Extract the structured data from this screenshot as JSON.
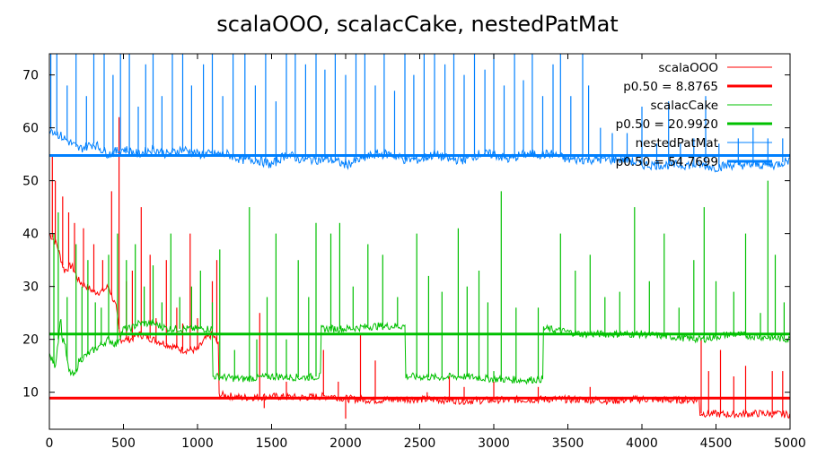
{
  "chart_data": {
    "type": "line",
    "title": "scalaOOO, scalacCake, nestedPatMat",
    "xlabel": "",
    "ylabel": "",
    "xlim": [
      0,
      5000
    ],
    "ylim": [
      3,
      74
    ],
    "xticks": [
      0,
      500,
      1000,
      1500,
      2000,
      2500,
      3000,
      3500,
      4000,
      4500,
      5000
    ],
    "yticks": [
      10,
      20,
      30,
      40,
      50,
      60,
      70
    ],
    "grid": false,
    "legend_position": "top-right",
    "series": [
      {
        "name": "scalaOOO",
        "color": "#ff0000",
        "median_label": "p0.50 = 8.8765",
        "median": 8.8765,
        "points": [
          [
            0,
            40
          ],
          [
            50,
            38
          ],
          [
            100,
            33
          ],
          [
            150,
            34
          ],
          [
            200,
            31
          ],
          [
            250,
            30
          ],
          [
            300,
            29
          ],
          [
            350,
            29
          ],
          [
            400,
            30
          ],
          [
            450,
            26
          ],
          [
            480,
            20
          ],
          [
            550,
            20
          ],
          [
            600,
            21
          ],
          [
            700,
            20
          ],
          [
            800,
            19
          ],
          [
            900,
            18
          ],
          [
            1000,
            18
          ],
          [
            1050,
            20
          ],
          [
            1100,
            21
          ],
          [
            1140,
            19
          ],
          [
            1160,
            9.5
          ],
          [
            1300,
            9
          ],
          [
            1500,
            9.2
          ],
          [
            1700,
            9
          ],
          [
            1900,
            9.3
          ],
          [
            2000,
            8.8
          ],
          [
            2200,
            8.5
          ],
          [
            2400,
            8.7
          ],
          [
            2600,
            8.6
          ],
          [
            2800,
            8.4
          ],
          [
            3000,
            8.5
          ],
          [
            3200,
            8.6
          ],
          [
            3400,
            8.7
          ],
          [
            3600,
            8.6
          ],
          [
            3800,
            8.4
          ],
          [
            4000,
            8.7
          ],
          [
            4200,
            8.5
          ],
          [
            4390,
            8.6
          ],
          [
            4400,
            6
          ],
          [
            4600,
            5.8
          ],
          [
            4800,
            6
          ],
          [
            5000,
            5.8
          ]
        ],
        "spikes": [
          [
            20,
            55
          ],
          [
            40,
            50
          ],
          [
            90,
            47
          ],
          [
            130,
            44
          ],
          [
            170,
            42
          ],
          [
            230,
            41
          ],
          [
            300,
            38
          ],
          [
            360,
            35
          ],
          [
            420,
            48
          ],
          [
            470,
            62
          ],
          [
            520,
            31
          ],
          [
            560,
            33
          ],
          [
            620,
            45
          ],
          [
            680,
            36
          ],
          [
            720,
            24
          ],
          [
            790,
            35
          ],
          [
            860,
            26
          ],
          [
            900,
            23
          ],
          [
            950,
            40
          ],
          [
            1000,
            24
          ],
          [
            1100,
            31
          ],
          [
            1130,
            35
          ],
          [
            1420,
            25
          ],
          [
            1450,
            7
          ],
          [
            1600,
            12
          ],
          [
            1850,
            18
          ],
          [
            1950,
            12
          ],
          [
            2000,
            5
          ],
          [
            2100,
            21
          ],
          [
            2200,
            16
          ],
          [
            2550,
            10
          ],
          [
            2700,
            13
          ],
          [
            2800,
            11
          ],
          [
            3000,
            12
          ],
          [
            3300,
            11
          ],
          [
            3650,
            11
          ],
          [
            4400,
            20
          ],
          [
            4450,
            14
          ],
          [
            4530,
            18
          ],
          [
            4620,
            13
          ],
          [
            4700,
            15
          ],
          [
            4880,
            14
          ],
          [
            4950,
            14
          ]
        ]
      },
      {
        "name": "scalacCake",
        "color": "#00c000",
        "median_label": "p0.50 = 20.9920",
        "median": 20.992,
        "points": [
          [
            0,
            17
          ],
          [
            40,
            15
          ],
          [
            80,
            25
          ],
          [
            100,
            20
          ],
          [
            130,
            14
          ],
          [
            170,
            13
          ],
          [
            200,
            16
          ],
          [
            250,
            17
          ],
          [
            300,
            18
          ],
          [
            350,
            19
          ],
          [
            400,
            20
          ],
          [
            450,
            19
          ],
          [
            500,
            22
          ],
          [
            550,
            22
          ],
          [
            600,
            23
          ],
          [
            700,
            23
          ],
          [
            800,
            22
          ],
          [
            900,
            22
          ],
          [
            1000,
            22
          ],
          [
            1050,
            22
          ],
          [
            1100,
            22
          ],
          [
            1120,
            13
          ],
          [
            1300,
            12.5
          ],
          [
            1500,
            13
          ],
          [
            1700,
            12.8
          ],
          [
            1830,
            13
          ],
          [
            1850,
            22
          ],
          [
            2000,
            22
          ],
          [
            2200,
            22.5
          ],
          [
            2400,
            22.5
          ],
          [
            2410,
            13
          ],
          [
            2600,
            12.8
          ],
          [
            2800,
            13
          ],
          [
            3000,
            12.5
          ],
          [
            3200,
            12.3
          ],
          [
            3330,
            12.5
          ],
          [
            3350,
            22
          ],
          [
            3600,
            21
          ],
          [
            3800,
            21
          ],
          [
            4000,
            21
          ],
          [
            4200,
            20.5
          ],
          [
            4400,
            20
          ],
          [
            4600,
            21
          ],
          [
            4800,
            20.5
          ],
          [
            5000,
            20
          ]
        ],
        "spikes": [
          [
            30,
            40
          ],
          [
            60,
            44
          ],
          [
            120,
            28
          ],
          [
            180,
            38
          ],
          [
            220,
            30
          ],
          [
            260,
            35
          ],
          [
            310,
            27
          ],
          [
            350,
            26
          ],
          [
            400,
            36
          ],
          [
            460,
            40
          ],
          [
            520,
            35
          ],
          [
            580,
            38
          ],
          [
            640,
            30
          ],
          [
            700,
            34
          ],
          [
            760,
            27
          ],
          [
            820,
            40
          ],
          [
            880,
            28
          ],
          [
            960,
            30
          ],
          [
            1020,
            33
          ],
          [
            1100,
            27
          ],
          [
            1150,
            37
          ],
          [
            1250,
            18
          ],
          [
            1350,
            45
          ],
          [
            1400,
            20
          ],
          [
            1470,
            28
          ],
          [
            1530,
            40
          ],
          [
            1600,
            20
          ],
          [
            1680,
            35
          ],
          [
            1750,
            28
          ],
          [
            1800,
            42
          ],
          [
            1900,
            40
          ],
          [
            1960,
            42
          ],
          [
            2050,
            30
          ],
          [
            2150,
            38
          ],
          [
            2250,
            36
          ],
          [
            2350,
            28
          ],
          [
            2480,
            40
          ],
          [
            2560,
            32
          ],
          [
            2650,
            29
          ],
          [
            2760,
            41
          ],
          [
            2820,
            30
          ],
          [
            2900,
            33
          ],
          [
            2960,
            27
          ],
          [
            3000,
            14
          ],
          [
            3050,
            48
          ],
          [
            3150,
            26
          ],
          [
            3300,
            26
          ],
          [
            3450,
            40
          ],
          [
            3550,
            33
          ],
          [
            3650,
            36
          ],
          [
            3750,
            28
          ],
          [
            3850,
            29
          ],
          [
            3950,
            45
          ],
          [
            4050,
            31
          ],
          [
            4150,
            40
          ],
          [
            4250,
            26
          ],
          [
            4350,
            35
          ],
          [
            4420,
            45
          ],
          [
            4500,
            31
          ],
          [
            4620,
            29
          ],
          [
            4700,
            40
          ],
          [
            4800,
            25
          ],
          [
            4850,
            50
          ],
          [
            4900,
            36
          ],
          [
            4960,
            27
          ]
        ]
      },
      {
        "name": "nestedPatMat",
        "color": "#0080ff",
        "median_label": "p0.50 = 54.7699",
        "median": 54.7699,
        "points": [
          [
            0,
            60
          ],
          [
            100,
            58
          ],
          [
            200,
            56
          ],
          [
            300,
            57
          ],
          [
            400,
            55
          ],
          [
            500,
            56
          ],
          [
            600,
            55
          ],
          [
            700,
            56
          ],
          [
            800,
            55
          ],
          [
            900,
            56
          ],
          [
            1000,
            55
          ],
          [
            1100,
            55
          ],
          [
            1200,
            55
          ],
          [
            1300,
            54
          ],
          [
            1400,
            54
          ],
          [
            1500,
            53
          ],
          [
            1600,
            55
          ],
          [
            1700,
            54
          ],
          [
            1800,
            54
          ],
          [
            1900,
            54
          ],
          [
            2000,
            53
          ],
          [
            2100,
            54
          ],
          [
            2200,
            55
          ],
          [
            2300,
            55
          ],
          [
            2400,
            54
          ],
          [
            2500,
            54
          ],
          [
            2600,
            55
          ],
          [
            2700,
            54
          ],
          [
            2800,
            54
          ],
          [
            2900,
            55
          ],
          [
            3000,
            55
          ],
          [
            3100,
            54
          ],
          [
            3200,
            55
          ],
          [
            3300,
            55
          ],
          [
            3400,
            55
          ],
          [
            3500,
            54
          ],
          [
            3600,
            54
          ],
          [
            3700,
            54
          ],
          [
            3800,
            54
          ],
          [
            3900,
            54
          ],
          [
            4000,
            53
          ],
          [
            4100,
            53
          ],
          [
            4200,
            53
          ],
          [
            4300,
            53
          ],
          [
            4400,
            53
          ],
          [
            4500,
            52.5
          ],
          [
            4600,
            53
          ],
          [
            4700,
            53
          ],
          [
            4800,
            53
          ],
          [
            4900,
            53
          ],
          [
            5000,
            54
          ]
        ],
        "spikes": [
          [
            10,
            74
          ],
          [
            50,
            74
          ],
          [
            120,
            68
          ],
          [
            180,
            74
          ],
          [
            250,
            66
          ],
          [
            300,
            74
          ],
          [
            370,
            74
          ],
          [
            430,
            70
          ],
          [
            480,
            74
          ],
          [
            540,
            74
          ],
          [
            600,
            64
          ],
          [
            650,
            72
          ],
          [
            700,
            74
          ],
          [
            760,
            66
          ],
          [
            830,
            74
          ],
          [
            900,
            74
          ],
          [
            960,
            68
          ],
          [
            1040,
            72
          ],
          [
            1100,
            74
          ],
          [
            1170,
            66
          ],
          [
            1240,
            74
          ],
          [
            1320,
            74
          ],
          [
            1390,
            68
          ],
          [
            1460,
            74
          ],
          [
            1530,
            65
          ],
          [
            1600,
            74
          ],
          [
            1660,
            74
          ],
          [
            1730,
            72
          ],
          [
            1800,
            74
          ],
          [
            1860,
            71
          ],
          [
            1930,
            74
          ],
          [
            2000,
            70
          ],
          [
            2070,
            74
          ],
          [
            2130,
            74
          ],
          [
            2200,
            68
          ],
          [
            2260,
            74
          ],
          [
            2330,
            67
          ],
          [
            2400,
            74
          ],
          [
            2460,
            70
          ],
          [
            2530,
            74
          ],
          [
            2600,
            74
          ],
          [
            2670,
            72
          ],
          [
            2730,
            74
          ],
          [
            2800,
            70
          ],
          [
            2870,
            74
          ],
          [
            2940,
            71
          ],
          [
            3000,
            74
          ],
          [
            3070,
            68
          ],
          [
            3140,
            74
          ],
          [
            3200,
            69
          ],
          [
            3260,
            74
          ],
          [
            3330,
            66
          ],
          [
            3400,
            72
          ],
          [
            3450,
            74
          ],
          [
            3520,
            66
          ],
          [
            3600,
            74
          ],
          [
            3640,
            68
          ],
          [
            3720,
            60
          ],
          [
            3800,
            59
          ],
          [
            3900,
            59
          ],
          [
            4000,
            64
          ],
          [
            4100,
            57
          ],
          [
            4180,
            65
          ],
          [
            4260,
            57
          ],
          [
            4350,
            58
          ],
          [
            4430,
            66
          ],
          [
            4520,
            57
          ],
          [
            4650,
            58
          ],
          [
            4750,
            60
          ],
          [
            4850,
            58
          ],
          [
            4950,
            58
          ]
        ]
      }
    ]
  }
}
